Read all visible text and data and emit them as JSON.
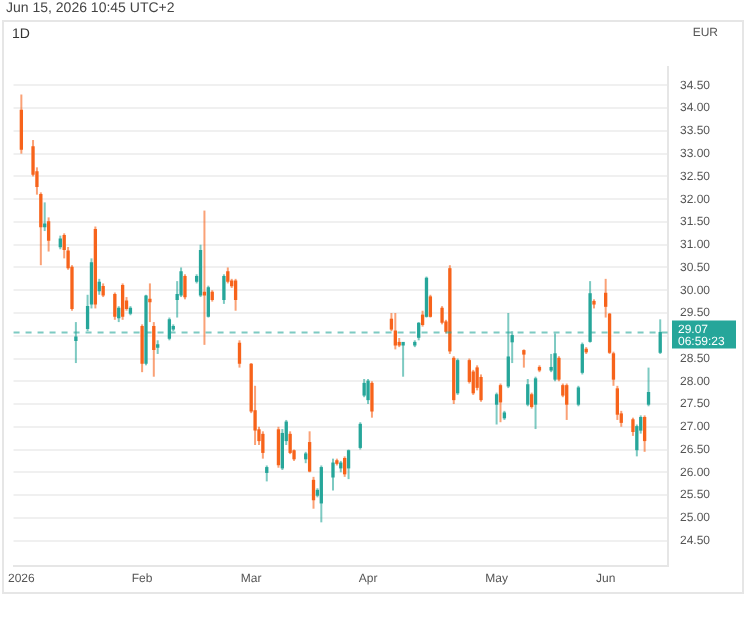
{
  "chart_data": {
    "type": "candlestick",
    "title": "1D",
    "ylabel": "EUR",
    "annotations": [
      "Jun 15, 2026 10:45 UTC+2",
      "06:59:23"
    ],
    "x": [
      "2026-01-02",
      "2026-01-05",
      "2026-01-06",
      "2026-01-07",
      "2026-01-08",
      "2026-01-09",
      "2026-01-12",
      "2026-01-13",
      "2026-01-14",
      "2026-01-15",
      "2026-01-16",
      "2026-01-19",
      "2026-01-20",
      "2026-01-21",
      "2026-01-22",
      "2026-01-23",
      "2026-01-26",
      "2026-01-27",
      "2026-01-28",
      "2026-01-29",
      "2026-01-30",
      "2026-02-02",
      "2026-02-03",
      "2026-02-04",
      "2026-02-05",
      "2026-02-06",
      "2026-02-09",
      "2026-02-10",
      "2026-02-11",
      "2026-02-12",
      "2026-02-13",
      "2026-02-16",
      "2026-02-17",
      "2026-02-18",
      "2026-02-19",
      "2026-02-20",
      "2026-02-23",
      "2026-02-24",
      "2026-02-25",
      "2026-02-26",
      "2026-02-27",
      "2026-03-02",
      "2026-03-03",
      "2026-03-04",
      "2026-03-05",
      "2026-03-06",
      "2026-03-09",
      "2026-03-10",
      "2026-03-11",
      "2026-03-12",
      "2026-03-13",
      "2026-03-16",
      "2026-03-17",
      "2026-03-18",
      "2026-03-19",
      "2026-03-20",
      "2026-03-23",
      "2026-03-24",
      "2026-03-25",
      "2026-03-26",
      "2026-03-27",
      "2026-03-30",
      "2026-03-31",
      "2026-04-01",
      "2026-04-02",
      "2026-04-07",
      "2026-04-08",
      "2026-04-09",
      "2026-04-10",
      "2026-04-13",
      "2026-04-14",
      "2026-04-15",
      "2026-04-16",
      "2026-04-17",
      "2026-04-20",
      "2026-04-21",
      "2026-04-22",
      "2026-04-23",
      "2026-04-24",
      "2026-04-27",
      "2026-04-28",
      "2026-04-29",
      "2026-04-30",
      "2026-05-04",
      "2026-05-05",
      "2026-05-06",
      "2026-05-07",
      "2026-05-08",
      "2026-05-11",
      "2026-05-12",
      "2026-05-13",
      "2026-05-14",
      "2026-05-15",
      "2026-05-18",
      "2026-05-19",
      "2026-05-20",
      "2026-05-21",
      "2026-05-22",
      "2026-05-25",
      "2026-05-26",
      "2026-05-27",
      "2026-05-28",
      "2026-05-29",
      "2026-06-01",
      "2026-06-02",
      "2026-06-03",
      "2026-06-04",
      "2026-06-05",
      "2026-06-08",
      "2026-06-09",
      "2026-06-10",
      "2026-06-11",
      "2026-06-12",
      "2026-06-15"
    ],
    "ohlc": [
      [
        33.95,
        34.3,
        33.0,
        33.1
      ],
      [
        33.15,
        33.3,
        32.5,
        32.55
      ],
      [
        32.6,
        32.7,
        32.1,
        32.28
      ],
      [
        32.1,
        32.15,
        30.55,
        31.4
      ],
      [
        31.4,
        31.93,
        31.3,
        31.45
      ],
      [
        31.5,
        31.6,
        30.85,
        31.1
      ],
      [
        30.96,
        31.2,
        30.9,
        31.12
      ],
      [
        31.2,
        31.25,
        30.7,
        30.9
      ],
      [
        30.86,
        30.95,
        30.45,
        30.5
      ],
      [
        30.5,
        30.55,
        29.55,
        29.6
      ],
      [
        28.9,
        29.3,
        28.4,
        28.97
      ],
      [
        29.16,
        29.9,
        29.1,
        29.64
      ],
      [
        29.7,
        30.7,
        29.6,
        30.6
      ],
      [
        31.33,
        31.4,
        29.6,
        29.7
      ],
      [
        29.99,
        30.25,
        29.9,
        30.17
      ],
      [
        30.08,
        30.15,
        29.85,
        29.9
      ],
      [
        29.9,
        29.95,
        29.35,
        29.43
      ],
      [
        29.4,
        29.65,
        29.3,
        29.6
      ],
      [
        30.1,
        30.15,
        29.35,
        29.43
      ],
      [
        29.76,
        29.85,
        29.55,
        29.6
      ],
      [
        29.5,
        29.65,
        29.45,
        29.6
      ],
      [
        29.2,
        29.25,
        28.2,
        28.4
      ],
      [
        28.4,
        29.9,
        28.35,
        29.87
      ],
      [
        29.8,
        30.15,
        29.3,
        29.75
      ],
      [
        29.2,
        29.3,
        28.1,
        28.7
      ],
      [
        28.75,
        28.9,
        28.6,
        28.8
      ],
      [
        28.95,
        29.4,
        28.9,
        29.35
      ],
      [
        29.15,
        29.25,
        29.1,
        29.2
      ],
      [
        29.8,
        30.2,
        29.4,
        29.9
      ],
      [
        29.9,
        30.5,
        29.85,
        30.4
      ],
      [
        30.3,
        30.35,
        29.8,
        29.86
      ],
      [
        30.2,
        30.35,
        30.15,
        30.3
      ],
      [
        29.9,
        31.0,
        29.85,
        30.87
      ],
      [
        29.95,
        31.75,
        28.8,
        29.9
      ],
      [
        29.43,
        30.1,
        29.4,
        30.05
      ],
      [
        29.95,
        30.0,
        29.75,
        29.8
      ],
      [
        29.8,
        30.35,
        29.7,
        30.3
      ],
      [
        30.4,
        30.5,
        30.15,
        30.2
      ],
      [
        30.2,
        30.25,
        30.05,
        30.1
      ],
      [
        30.2,
        30.25,
        29.55,
        29.8
      ],
      [
        28.83,
        28.9,
        28.3,
        28.4
      ],
      [
        28.37,
        28.4,
        27.3,
        27.35
      ],
      [
        27.35,
        27.9,
        26.6,
        26.93
      ],
      [
        26.93,
        27.0,
        26.6,
        26.7
      ],
      [
        26.83,
        26.9,
        26.3,
        26.44
      ],
      [
        26.0,
        26.15,
        25.8,
        26.1
      ],
      [
        26.93,
        27.0,
        26.1,
        26.17
      ],
      [
        26.1,
        26.95,
        26.05,
        26.85
      ],
      [
        26.7,
        27.15,
        26.6,
        27.1
      ],
      [
        26.83,
        26.9,
        26.4,
        26.44
      ],
      [
        26.47,
        26.5,
        26.25,
        26.3
      ],
      [
        26.3,
        26.45,
        26.2,
        26.4
      ],
      [
        26.65,
        26.9,
        26.0,
        26.03
      ],
      [
        25.82,
        25.9,
        25.2,
        25.4
      ],
      [
        25.5,
        25.65,
        25.45,
        25.6
      ],
      [
        25.33,
        26.15,
        24.9,
        26.1
      ],
      [
        25.9,
        26.3,
        25.6,
        26.2
      ],
      [
        26.25,
        26.3,
        26.15,
        26.2
      ],
      [
        26.1,
        26.25,
        26.0,
        26.2
      ],
      [
        26.3,
        26.35,
        25.9,
        25.97
      ],
      [
        26.1,
        26.5,
        25.85,
        26.47
      ],
      [
        26.55,
        27.1,
        26.5,
        27.05
      ],
      [
        27.7,
        28.05,
        27.65,
        27.95
      ],
      [
        27.6,
        28.05,
        27.5,
        28.0
      ],
      [
        27.95,
        28.0,
        27.2,
        27.35
      ],
      [
        29.36,
        29.5,
        29.1,
        29.15
      ],
      [
        29.1,
        29.5,
        28.7,
        28.8
      ],
      [
        28.85,
        28.95,
        28.75,
        28.8
      ],
      [
        28.8,
        28.85,
        28.1,
        28.85
      ],
      [
        28.8,
        28.9,
        28.75,
        28.85
      ],
      [
        28.97,
        29.3,
        28.9,
        29.27
      ],
      [
        29.45,
        29.55,
        29.2,
        29.25
      ],
      [
        29.43,
        30.3,
        29.4,
        30.26
      ],
      [
        29.85,
        29.9,
        29.4,
        29.43
      ],
      [
        29.6,
        29.65,
        29.25,
        29.3
      ],
      [
        29.3,
        29.35,
        29.05,
        29.1
      ],
      [
        30.47,
        30.55,
        28.6,
        28.67
      ],
      [
        28.5,
        28.55,
        27.5,
        27.6
      ],
      [
        27.75,
        28.5,
        27.7,
        28.45
      ],
      [
        28.45,
        28.5,
        27.95,
        28.0
      ],
      [
        28.2,
        28.25,
        27.7,
        27.75
      ],
      [
        28.29,
        28.35,
        27.8,
        27.87
      ],
      [
        28.08,
        28.15,
        27.55,
        27.6
      ],
      [
        27.5,
        27.75,
        27.05,
        27.7
      ],
      [
        27.9,
        27.95,
        27.1,
        27.55
      ],
      [
        27.2,
        27.35,
        27.15,
        27.3
      ],
      [
        27.9,
        29.5,
        27.85,
        28.53
      ],
      [
        28.87,
        29.1,
        28.4,
        29.0
      ],
      [
        28.67,
        28.7,
        28.3,
        28.6
      ],
      [
        27.5,
        28.05,
        27.45,
        27.92
      ],
      [
        27.7,
        27.75,
        27.4,
        27.45
      ],
      [
        27.5,
        28.1,
        26.95,
        28.05
      ],
      [
        28.3,
        28.35,
        28.2,
        28.25
      ],
      [
        28.25,
        28.6,
        28.2,
        28.3
      ],
      [
        28.05,
        29.05,
        28.0,
        28.6
      ],
      [
        28.5,
        28.55,
        28.0,
        28.05
      ],
      [
        27.9,
        27.95,
        27.65,
        27.7
      ],
      [
        27.9,
        27.95,
        27.15,
        27.5
      ],
      [
        27.5,
        27.9,
        27.45,
        27.85
      ],
      [
        28.2,
        28.85,
        28.15,
        28.8
      ],
      [
        28.7,
        28.75,
        28.6,
        28.65
      ],
      [
        28.88,
        30.2,
        28.85,
        29.92
      ],
      [
        29.75,
        29.8,
        29.6,
        29.7
      ],
      [
        29.93,
        30.25,
        29.4,
        29.65
      ],
      [
        29.47,
        29.5,
        28.6,
        28.64
      ],
      [
        28.6,
        28.65,
        27.9,
        28.05
      ],
      [
        27.83,
        27.9,
        27.15,
        27.28
      ],
      [
        27.28,
        27.35,
        27.0,
        27.1
      ],
      [
        27.15,
        27.2,
        26.8,
        26.9
      ],
      [
        26.5,
        27.05,
        26.35,
        27.0
      ],
      [
        26.93,
        27.25,
        26.85,
        27.2
      ],
      [
        27.2,
        27.25,
        26.45,
        26.7
      ],
      [
        27.5,
        28.3,
        27.45,
        27.75
      ],
      [
        28.64,
        29.36,
        28.6,
        29.07
      ]
    ],
    "colors": [
      "#f7631b",
      "#f7631b",
      "#f7631b",
      "#f7631b",
      "#26a69a",
      "#f7631b",
      "#26a69a",
      "#f7631b",
      "#f7631b",
      "#f7631b",
      "#26a69a",
      "#26a69a",
      "#26a69a",
      "#f7631b",
      "#26a69a",
      "#f7631b",
      "#f7631b",
      "#26a69a",
      "#f7631b",
      "#f7631b",
      "#26a69a",
      "#f7631b",
      "#26a69a",
      "#f7631b",
      "#f7631b",
      "#26a69a",
      "#26a69a",
      "#26a69a",
      "#26a69a",
      "#26a69a",
      "#f7631b",
      "#26a69a",
      "#26a69a",
      "#f7631b",
      "#26a69a",
      "#f7631b",
      "#26a69a",
      "#f7631b",
      "#f7631b",
      "#f7631b",
      "#f7631b",
      "#f7631b",
      "#f7631b",
      "#f7631b",
      "#f7631b",
      "#26a69a",
      "#f7631b",
      "#26a69a",
      "#26a69a",
      "#f7631b",
      "#f7631b",
      "#26a69a",
      "#f7631b",
      "#f7631b",
      "#26a69a",
      "#26a69a",
      "#26a69a",
      "#f7631b",
      "#26a69a",
      "#f7631b",
      "#26a69a",
      "#26a69a",
      "#26a69a",
      "#26a69a",
      "#f7631b",
      "#f7631b",
      "#f7631b",
      "#f7631b",
      "#26a69a",
      "#26a69a",
      "#26a69a",
      "#f7631b",
      "#26a69a",
      "#f7631b",
      "#f7631b",
      "#f7631b",
      "#f7631b",
      "#f7631b",
      "#26a69a",
      "#f7631b",
      "#f7631b",
      "#f7631b",
      "#f7631b",
      "#26a69a",
      "#f7631b",
      "#26a69a",
      "#26a69a",
      "#26a69a",
      "#f7631b",
      "#26a69a",
      "#f7631b",
      "#26a69a",
      "#f7631b",
      "#26a69a",
      "#26a69a",
      "#f7631b",
      "#f7631b",
      "#f7631b",
      "#26a69a",
      "#26a69a",
      "#f7631b",
      "#26a69a",
      "#f7631b",
      "#f7631b",
      "#f7631b",
      "#f7631b",
      "#f7631b",
      "#f7631b",
      "#f7631b",
      "#26a69a",
      "#26a69a",
      "#f7631b",
      "#26a69a",
      "#26a69a"
    ],
    "xlim": [
      "2025-12-31",
      "2026-06-17"
    ],
    "xticks": [
      {
        "value": "2026-01-02",
        "label": "2026"
      },
      {
        "value": "2026-02-02",
        "label": "Feb"
      },
      {
        "value": "2026-03-02",
        "label": "Mar"
      },
      {
        "value": "2026-04-01",
        "label": "Apr"
      },
      {
        "value": "2026-05-04",
        "label": "May"
      },
      {
        "value": "2026-06-01",
        "label": "Jun"
      }
    ],
    "ylim": [
      23.95,
      34.9
    ],
    "yticks": [
      {
        "value": 24.5,
        "label": "24.50"
      },
      {
        "value": 25,
        "label": "25.00"
      },
      {
        "value": 25.5,
        "label": "25.50"
      },
      {
        "value": 26,
        "label": "26.00"
      },
      {
        "value": 26.5,
        "label": "26.50"
      },
      {
        "value": 27,
        "label": "27.00"
      },
      {
        "value": 27.5,
        "label": "27.50"
      },
      {
        "value": 28,
        "label": "28.00"
      },
      {
        "value": 28.5,
        "label": "28.50"
      },
      {
        "value": 29,
        "label": null
      },
      {
        "value": 29.5,
        "label": "29.50"
      },
      {
        "value": 30,
        "label": "30.00"
      },
      {
        "value": 30.5,
        "label": "30.50"
      },
      {
        "value": 31,
        "label": "31.00"
      },
      {
        "value": 31.5,
        "label": "31.50"
      },
      {
        "value": 32,
        "label": "32.00"
      },
      {
        "value": 32.5,
        "label": "32.50"
      },
      {
        "value": 33,
        "label": "33.00"
      },
      {
        "value": 33.5,
        "label": "33.50"
      },
      {
        "value": 34,
        "label": "34.00"
      },
      {
        "value": 34.5,
        "label": "34.50"
      }
    ],
    "grid": "y",
    "ref_lines": [
      {
        "axis": "y",
        "value": 29.07,
        "label": "29.07",
        "color": "#26a69a",
        "line_style": "dashed"
      }
    ]
  }
}
